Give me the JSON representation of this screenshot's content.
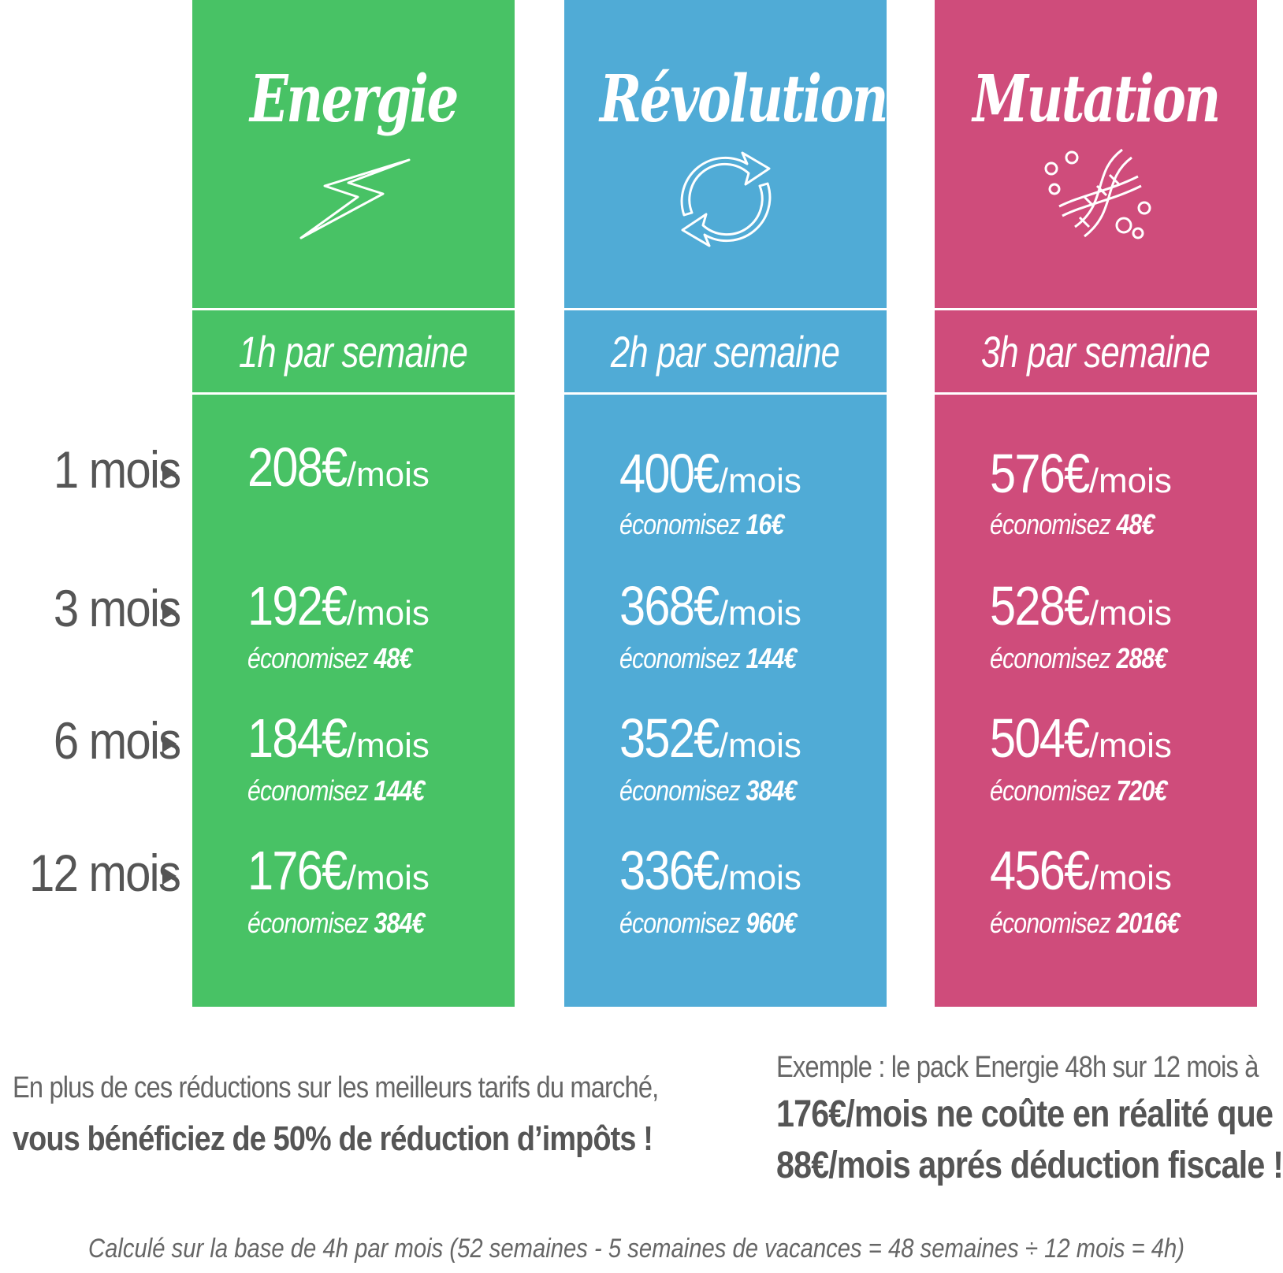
{
  "colors": {
    "energie": "#48c265",
    "revolution": "#50abd6",
    "mutation": "#cf4c7b"
  },
  "row_labels": [
    "1 mois",
    "3 mois",
    "6 mois",
    "12 mois"
  ],
  "plans": [
    {
      "name": "Energie",
      "icon": "lightning-icon",
      "hours": "1h par semaine",
      "rows": [
        {
          "price": "208€",
          "unit": "/mois",
          "save_label": "",
          "save_amount": ""
        },
        {
          "price": "192€",
          "unit": "/mois",
          "save_label": "économisez",
          "save_amount": "48€"
        },
        {
          "price": "184€",
          "unit": "/mois",
          "save_label": "économisez",
          "save_amount": "144€"
        },
        {
          "price": "176€",
          "unit": "/mois",
          "save_label": "économisez",
          "save_amount": "384€"
        }
      ]
    },
    {
      "name": "Révolution",
      "icon": "refresh-cycle-icon",
      "hours": "2h par semaine",
      "rows": [
        {
          "price": "400€",
          "unit": "/mois",
          "save_label": "économisez",
          "save_amount": "16€"
        },
        {
          "price": "368€",
          "unit": "/mois",
          "save_label": "économisez",
          "save_amount": "144€"
        },
        {
          "price": "352€",
          "unit": "/mois",
          "save_label": "économisez",
          "save_amount": "384€"
        },
        {
          "price": "336€",
          "unit": "/mois",
          "save_label": "économisez",
          "save_amount": "960€"
        }
      ]
    },
    {
      "name": "Mutation",
      "icon": "dna-icon",
      "hours": "3h par semaine",
      "rows": [
        {
          "price": "576€",
          "unit": "/mois",
          "save_label": "économisez",
          "save_amount": "48€"
        },
        {
          "price": "528€",
          "unit": "/mois",
          "save_label": "économisez",
          "save_amount": "288€"
        },
        {
          "price": "504€",
          "unit": "/mois",
          "save_label": "économisez",
          "save_amount": "720€"
        },
        {
          "price": "456€",
          "unit": "/mois",
          "save_label": "économisez",
          "save_amount": "2016€"
        }
      ]
    }
  ],
  "notes": {
    "left_line1": "En plus de ces réductions sur les meilleurs tarifs du marché,",
    "left_line2": "vous bénéficiez de 50% de réduction d’impôts !",
    "right_line1": "Exemple : le pack Energie 48h sur 12 mois à",
    "right_line2": "176€/mois ne coûte en réalité que",
    "right_line3": "88€/mois aprés déduction fiscale !"
  },
  "footnote": "Calculé sur la base de 4h par mois (52 semaines - 5 semaines de vacances = 48 semaines ÷ 12 mois = 4h)"
}
